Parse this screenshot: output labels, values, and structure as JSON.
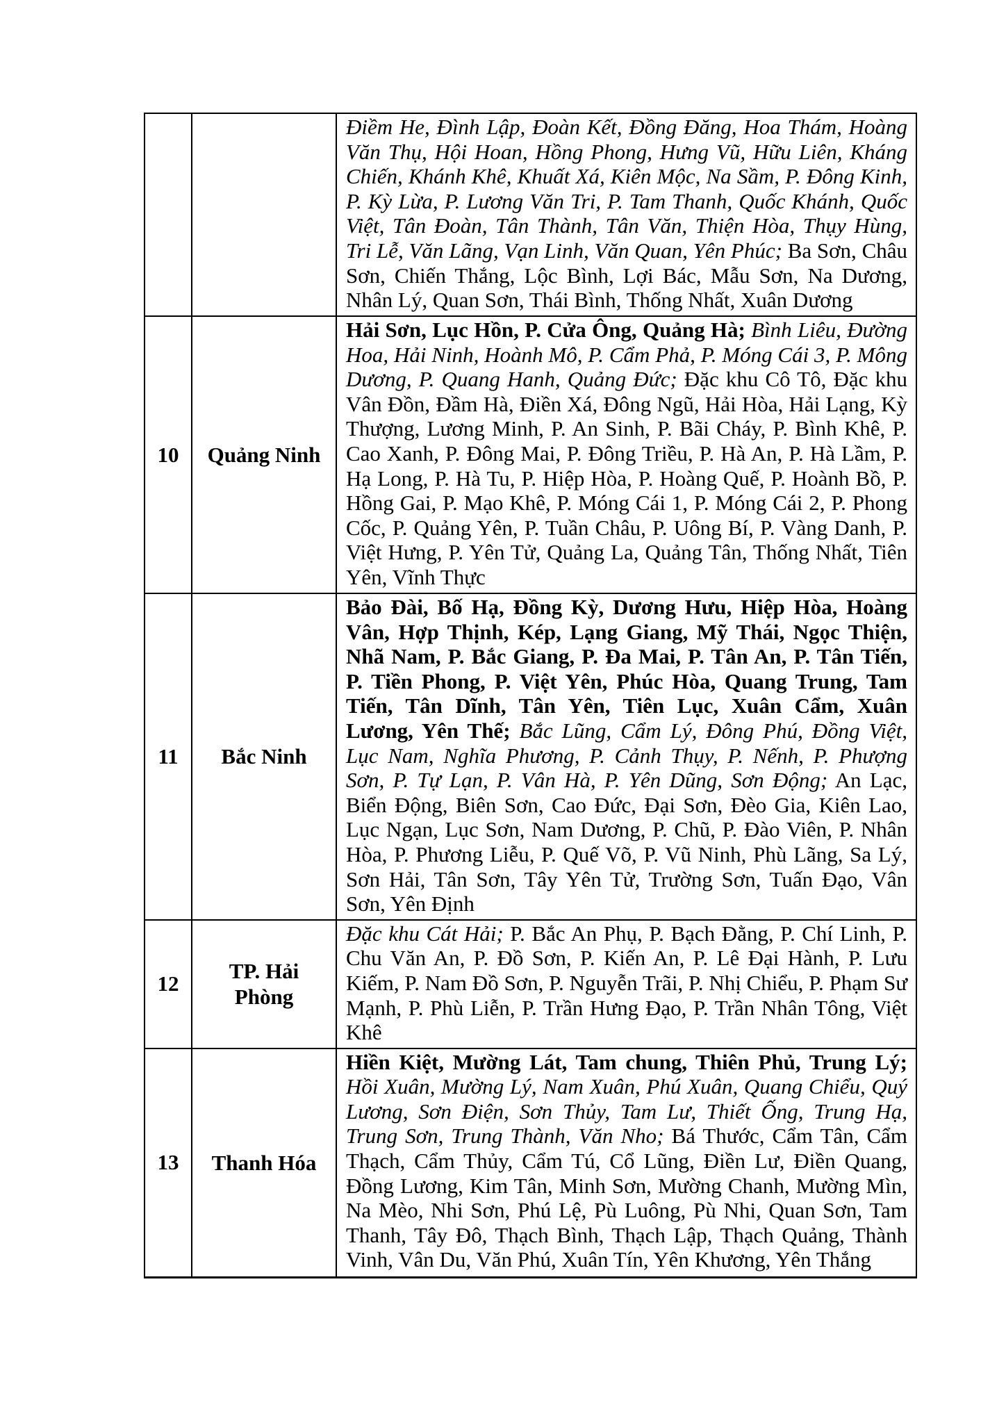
{
  "page": {
    "background": "#ffffff",
    "text_color": "#000000"
  },
  "table": {
    "columns": [
      "number",
      "province",
      "communes"
    ],
    "rows": [
      {
        "number": "",
        "province": "",
        "segments": [
          {
            "style": "italic",
            "text": "Điềm He, Đình Lập, Đoàn Kết, Đồng Đăng, Hoa Thám, Hoàng Văn Thụ, Hội Hoan, Hồng Phong, Hưng Vũ, Hữu Liên, Kháng Chiến, Khánh Khê, Khuất Xá, Kiên Mộc, Na Sầm, P. Đông Kinh, P. Kỳ Lừa, P. Lương Văn Tri, P. Tam Thanh, Quốc Khánh, Quốc Việt, Tân Đoàn, Tân Thành, Tân Văn, Thiện Hòa, Thụy Hùng, Tri Lễ, Văn Lãng, Vạn Linh, Văn Quan, Yên Phúc;"
          },
          {
            "style": "regular",
            "text": "Ba Sơn, Châu Sơn, Chiến Thắng, Lộc Bình, Lợi Bác, Mẫu Sơn, Na Dương, Nhân Lý, Quan Sơn, Thái Bình, Thống Nhất, Xuân Dương"
          }
        ]
      },
      {
        "number": "10",
        "province": "Quảng Ninh",
        "segments": [
          {
            "style": "bold",
            "text": "Hải Sơn, Lục Hồn, P. Cửa Ông, Quảng Hà;"
          },
          {
            "style": "italic",
            "text": "Bình Liêu, Đường Hoa, Hải Ninh, Hoành Mô, P. Cẩm Phả, P. Móng Cái 3, P. Mông Dương, P. Quang Hanh, Quảng Đức;"
          },
          {
            "style": "regular",
            "text": "Đặc khu Cô Tô, Đặc khu Vân Đồn, Đầm Hà, Điền Xá, Đông Ngũ, Hải Hòa, Hải Lạng, Kỳ Thượng, Lương Minh, P. An Sinh, P. Bãi Cháy, P. Bình Khê, P. Cao Xanh, P. Đông Mai, P. Đông Triều, P. Hà An, P. Hà Lầm, P. Hạ Long, P. Hà Tu, P. Hiệp Hòa, P. Hoàng Quế, P. Hoành Bồ, P. Hồng Gai, P. Mạo Khê, P. Móng Cái 1, P. Móng Cái 2, P. Phong Cốc, P. Quảng Yên, P. Tuần Châu, P. Uông Bí, P. Vàng Danh, P. Việt Hưng, P. Yên Tử, Quảng La, Quảng Tân, Thống Nhất, Tiên Yên, Vĩnh Thực"
          }
        ]
      },
      {
        "number": "11",
        "province": "Bắc Ninh",
        "segments": [
          {
            "style": "bold",
            "text": "Bảo Đài, Bố Hạ, Đồng Kỳ, Dương Hưu, Hiệp Hòa, Hoàng Vân, Hợp Thịnh, Kép, Lạng Giang, Mỹ Thái, Ngọc Thiện, Nhã Nam, P. Bắc Giang, P. Đa Mai, P. Tân An, P. Tân Tiến, P. Tiền Phong, P. Việt Yên, Phúc Hòa, Quang Trung, Tam Tiến, Tân Dĩnh, Tân Yên, Tiên Lục, Xuân Cẩm, Xuân Lương, Yên Thế;"
          },
          {
            "style": "italic",
            "text": "Bắc Lũng, Cẩm Lý, Đông Phú, Đồng Việt, Lục Nam, Nghĩa Phương, P. Cảnh Thụy, P. Nếnh, P. Phượng Sơn, P. Tự Lạn, P. Vân Hà, P. Yên Dũng, Sơn Động;"
          },
          {
            "style": "regular",
            "text": "An Lạc, Biển Động, Biên Sơn, Cao Đức, Đại Sơn, Đèo Gia, Kiên Lao, Lục Ngạn, Lục Sơn, Nam Dương, P. Chũ, P. Đào Viên, P. Nhân Hòa, P. Phương Liễu, P. Quế Võ, P. Vũ Ninh, Phù Lãng, Sa Lý, Sơn Hải, Tân Sơn, Tây Yên Tử, Trường Sơn, Tuấn Đạo, Vân Sơn, Yên Định"
          }
        ]
      },
      {
        "number": "12",
        "province": "TP. Hải Phòng",
        "segments": [
          {
            "style": "italic",
            "text": "Đặc khu Cát Hải;"
          },
          {
            "style": "regular",
            "text": "P. Bắc An Phụ, P. Bạch Đằng, P. Chí Linh, P. Chu Văn An, P. Đồ Sơn, P. Kiến An, P. Lê Đại Hành, P. Lưu Kiếm, P. Nam Đồ Sơn, P. Nguyễn Trãi, P. Nhị Chiểu, P. Phạm Sư Mạnh, P. Phù Liễn, P. Trần Hưng Đạo, P. Trần Nhân Tông, Việt Khê"
          }
        ]
      },
      {
        "number": "13",
        "province": "Thanh Hóa",
        "segments": [
          {
            "style": "bold",
            "text": "Hiền Kiệt, Mường Lát, Tam chung, Thiên Phủ, Trung Lý;"
          },
          {
            "style": "italic",
            "text": "Hồi Xuân, Mường Lý, Nam Xuân, Phú Xuân, Quang Chiểu, Quý Lương, Sơn Điện, Sơn Thủy, Tam Lư, Thiết Ống, Trung Hạ, Trung Sơn, Trung Thành, Văn Nho;"
          },
          {
            "style": "regular",
            "text": "Bá Thước, Cẩm Tân, Cẩm Thạch, Cẩm Thủy, Cẩm Tú, Cổ Lũng, Điền Lư, Điền Quang, Đồng Lương, Kim Tân, Minh Sơn, Mường Chanh, Mường Mìn, Na Mèo, Nhi Sơn, Phú Lệ, Pù Luông, Pù Nhi, Quan Sơn, Tam Thanh, Tây Đô, Thạch Bình, Thạch Lập, Thạch Quảng, Thành Vinh, Vân Du, Văn Phú, Xuân Tín, Yên Khương, Yên Thắng"
          }
        ]
      }
    ]
  }
}
